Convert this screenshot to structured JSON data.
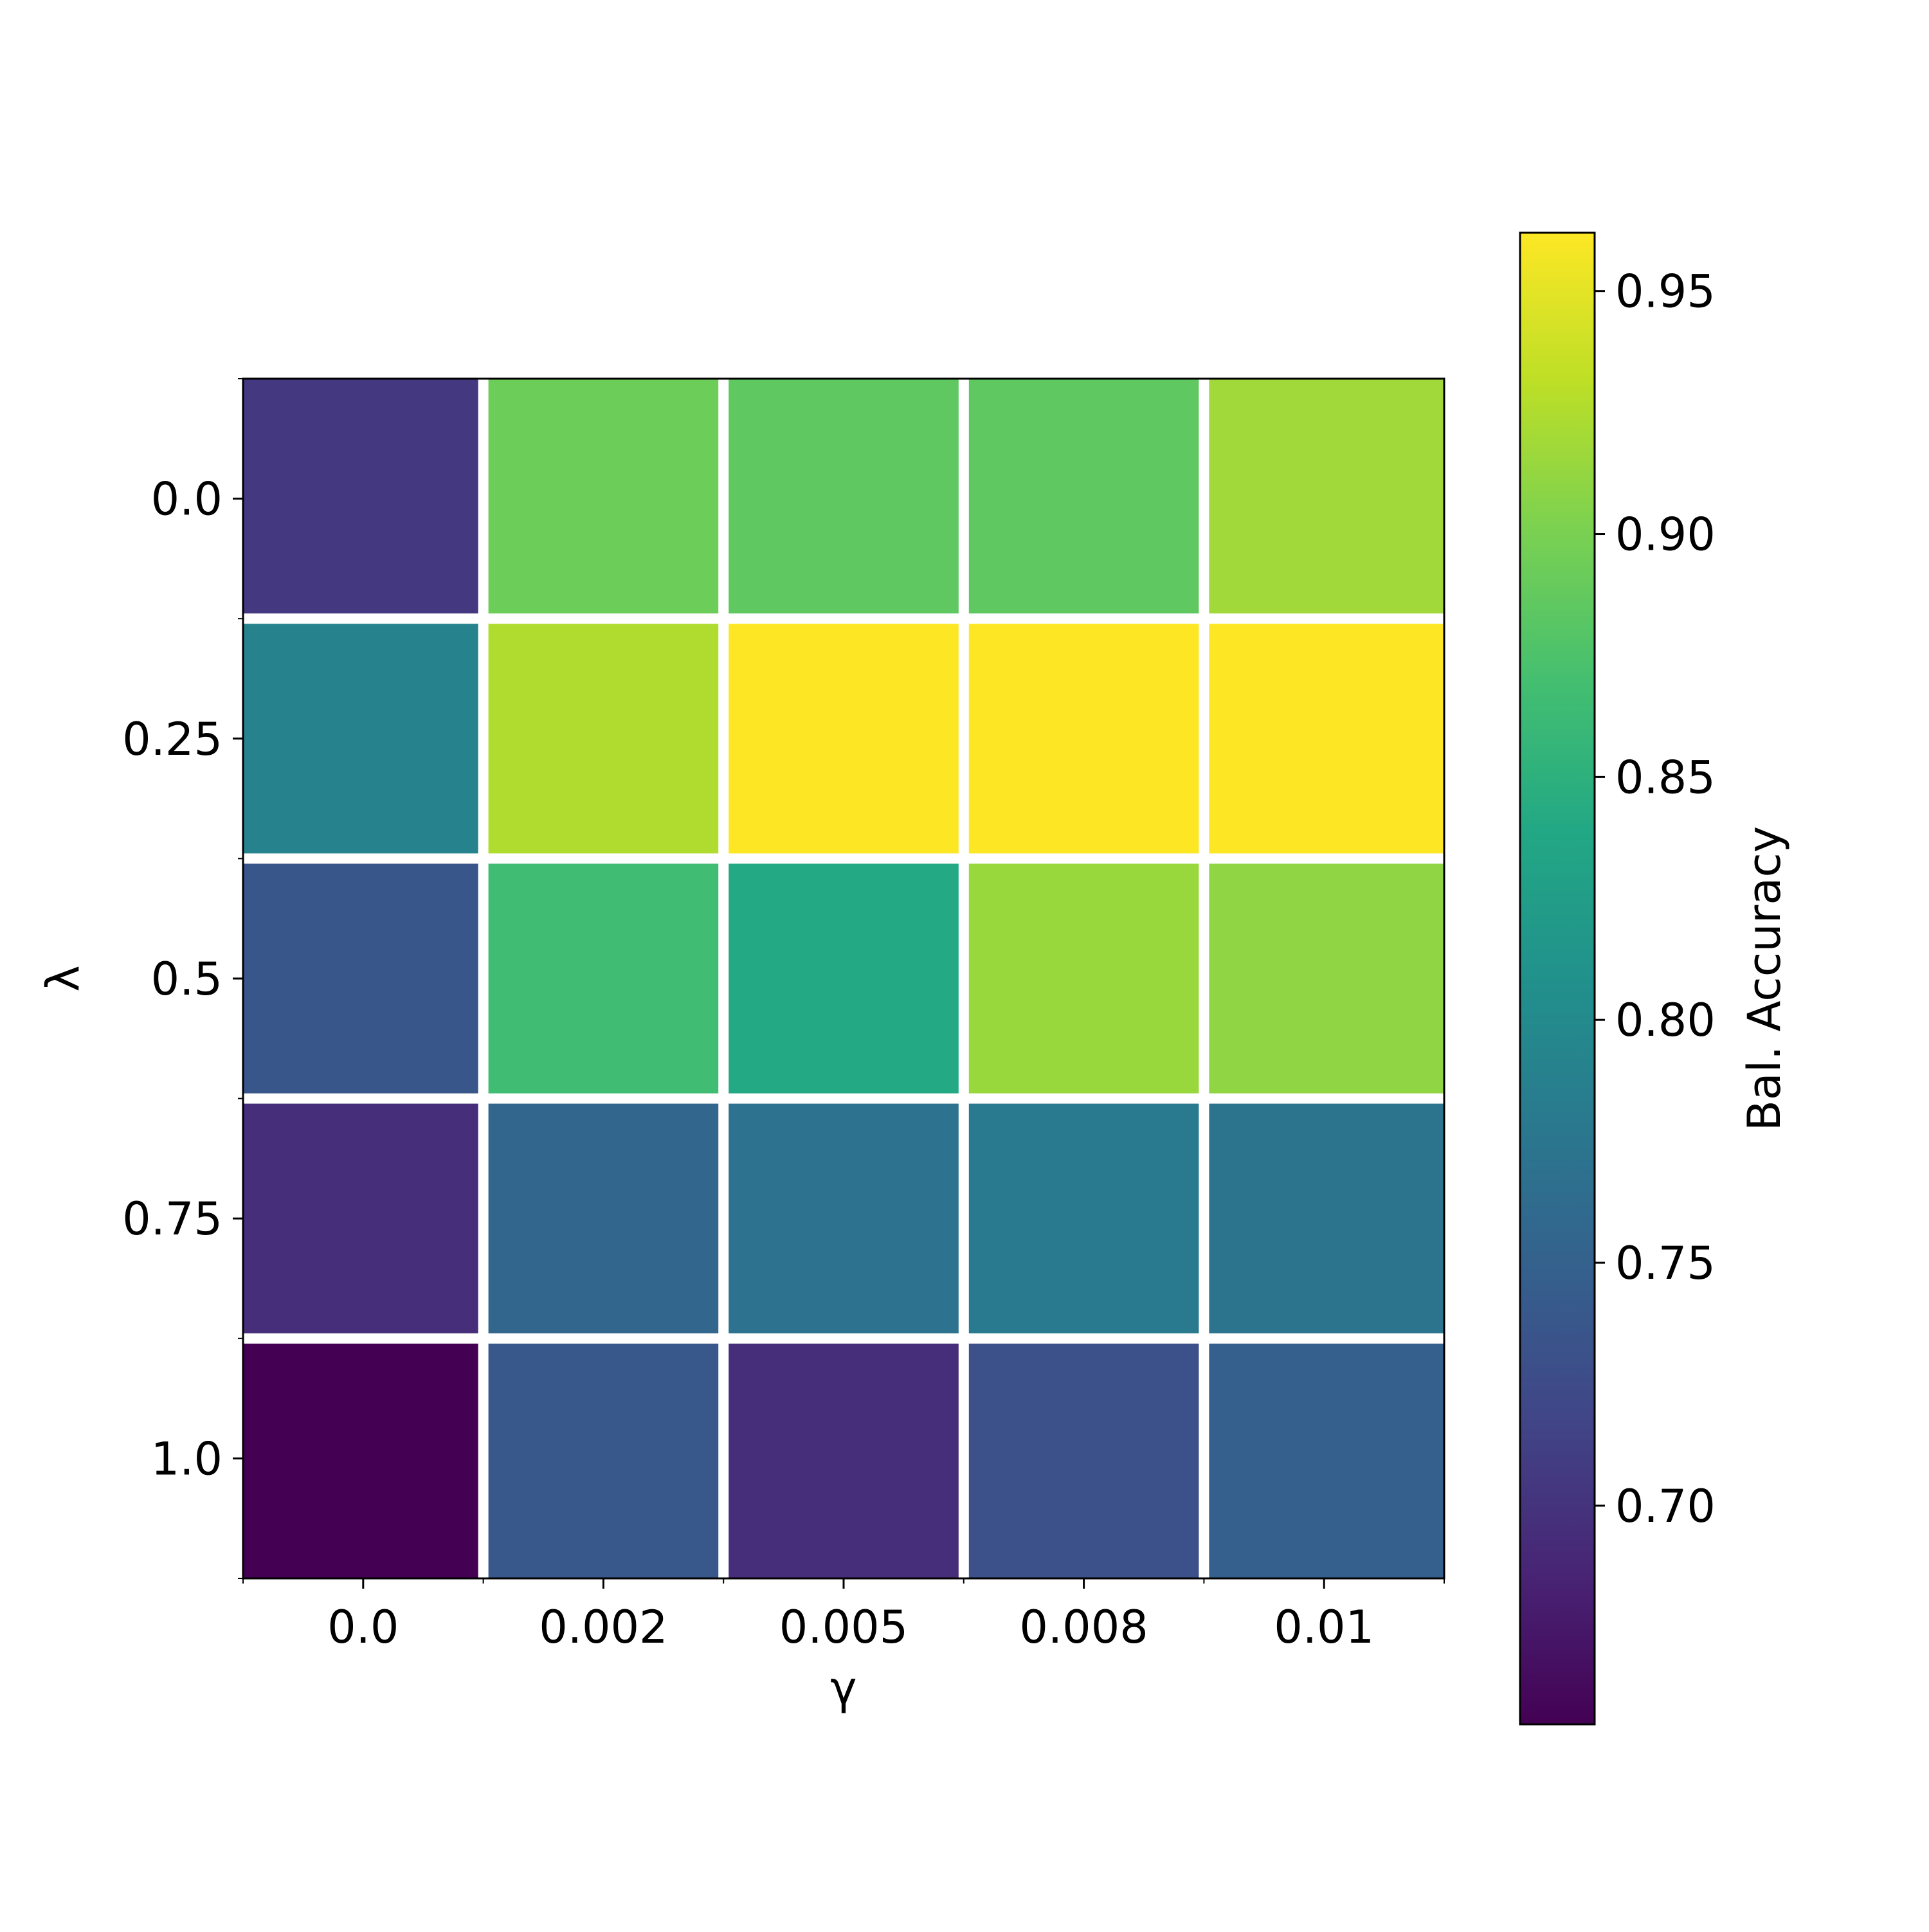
{
  "chart_data": {
    "type": "heatmap",
    "title": "",
    "xlabel": "γ",
    "ylabel": "λ",
    "x_categories": [
      "0.0",
      "0.002",
      "0.005",
      "0.008",
      "0.01"
    ],
    "y_categories": [
      "0.0",
      "0.25",
      "0.5",
      "0.75",
      "1.0"
    ],
    "values": [
      [
        0.705,
        0.893,
        0.885,
        0.885,
        0.918
      ],
      [
        0.791,
        0.925,
        0.962,
        0.962,
        0.962
      ],
      [
        0.737,
        0.866,
        0.84,
        0.915,
        0.91
      ],
      [
        0.695,
        0.756,
        0.77,
        0.78,
        0.773
      ],
      [
        0.655,
        0.739,
        0.695,
        0.73,
        0.748
      ]
    ],
    "colorbar": {
      "label": "Bal. Accuracy",
      "vmin": 0.655,
      "vmax": 0.962,
      "ticks": [
        "0.70",
        "0.75",
        "0.80",
        "0.85",
        "0.90",
        "0.95"
      ],
      "colormap": "viridis"
    },
    "grid": false,
    "cell_separator_color": "#ffffff"
  }
}
